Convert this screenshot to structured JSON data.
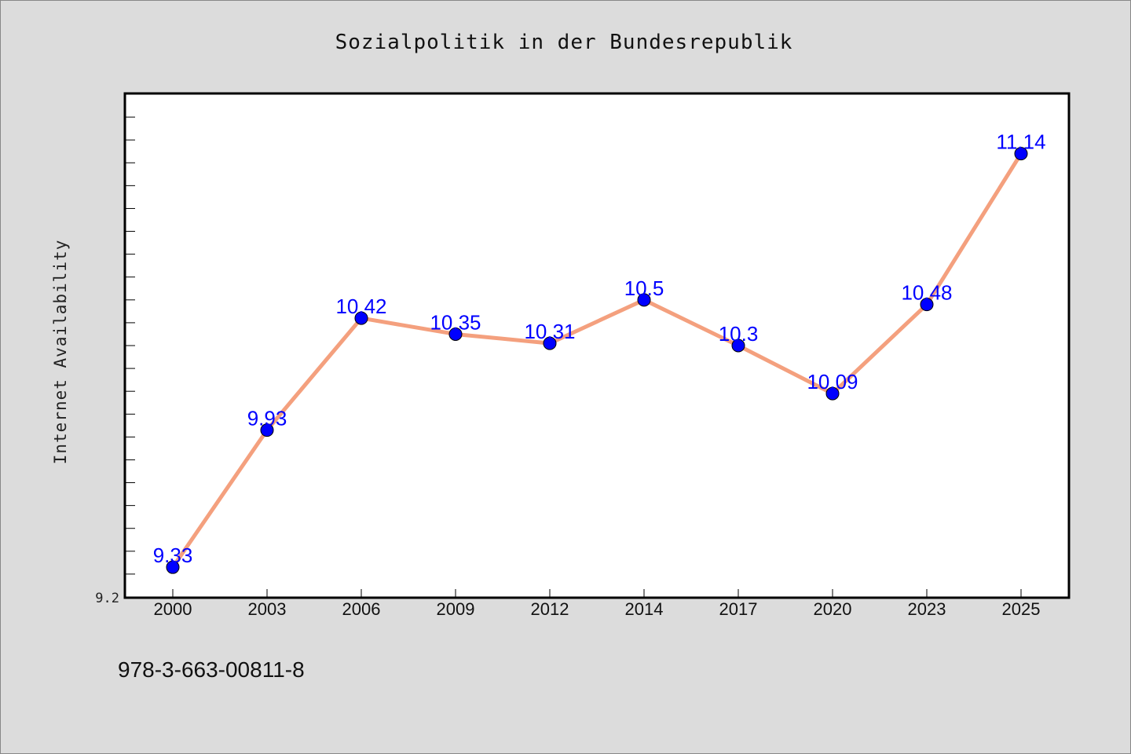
{
  "chart_data": {
    "type": "line",
    "title": "Sozialpolitik in der Bundesrepublik",
    "xlabel": "",
    "ylabel": "Internet Availability",
    "categories": [
      "2000",
      "2003",
      "2006",
      "2009",
      "2012",
      "2014",
      "2017",
      "2020",
      "2023",
      "2025"
    ],
    "series": [
      {
        "values": [
          9.33,
          9.93,
          10.42,
          10.35,
          10.31,
          10.5,
          10.3,
          10.09,
          10.48,
          11.14
        ],
        "labels": [
          "9.33",
          "9.93",
          "10.42",
          "10.35",
          "10.31",
          "10.5",
          "10.3",
          "10.09",
          "10.48",
          "11.14"
        ]
      }
    ],
    "ylim": [
      9.2,
      11.4
    ],
    "y_tick_labels": [
      "9.2"
    ],
    "grid": false,
    "legend": "none",
    "colors": {
      "line": "#f4a07e",
      "marker": "#0000ff",
      "data_label": "#0000ff",
      "plot_background": "#ffffff",
      "page_background": "#dcdcdc"
    }
  },
  "footnote": "978-3-663-00811-8"
}
